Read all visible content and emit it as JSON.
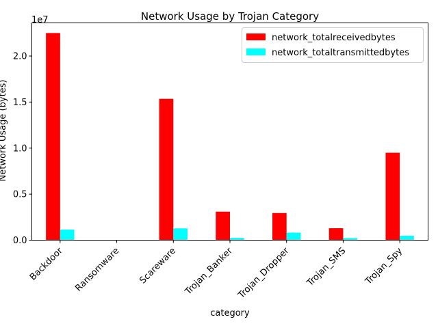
{
  "chart_data": {
    "type": "bar",
    "title": "Network Usage by Trojan Category",
    "xlabel": "category",
    "ylabel": "Network Usage (bytes)",
    "y_offset_text": "1e7",
    "categories": [
      "Backdoor",
      "Ransomware",
      "Scareware",
      "Trojan_Banker",
      "Trojan_Dropper",
      "Trojan_SMS",
      "Trojan_Spy"
    ],
    "series": [
      {
        "name": "network_totalreceivedbytes",
        "color": "#ff0000",
        "values": [
          22500000,
          0,
          15350000,
          3100000,
          2950000,
          1300000,
          9500000
        ]
      },
      {
        "name": "network_totaltransmittedbytes",
        "color": "#00ffff",
        "values": [
          1150000,
          0,
          1280000,
          250000,
          820000,
          230000,
          480000
        ]
      }
    ],
    "ylim": [
      0,
      23600000
    ],
    "yticks": [
      {
        "value": 0,
        "label": "0.0"
      },
      {
        "value": 5000000,
        "label": "0.5"
      },
      {
        "value": 10000000,
        "label": "1.0"
      },
      {
        "value": 15000000,
        "label": "1.5"
      },
      {
        "value": 20000000,
        "label": "2.0"
      }
    ],
    "grid": false,
    "legend_position": "top-right"
  }
}
